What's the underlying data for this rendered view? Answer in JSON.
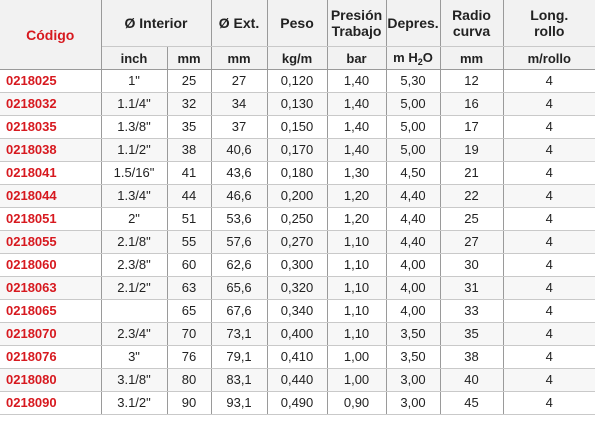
{
  "header": {
    "codigo": "Código",
    "interior": "Ø Interior",
    "ext": "Ø Ext.",
    "peso": "Peso",
    "presion_line1": "Presión",
    "presion_line2": "Trabajo",
    "depres": "Depres.",
    "radio_line1": "Radio",
    "radio_line2": "curva",
    "long_line1": "Long.",
    "long_line2": "rollo"
  },
  "units": {
    "inch": "inch",
    "mm_interior": "mm",
    "mm_ext": "mm",
    "kgm": "kg/m",
    "bar": "bar",
    "mh2o_pre": "m H",
    "mh2o_sub": "2",
    "mh2o_post": "O",
    "mm_radio": "mm",
    "mrollo": "m/rollo"
  },
  "rows": [
    {
      "code": "0218025",
      "inch": "1\"",
      "mm": "25",
      "ext": "27",
      "peso": "0,120",
      "bar": "1,40",
      "depres": "5,30",
      "radio": "12",
      "rollo": "4"
    },
    {
      "code": "0218032",
      "inch": "1.1/4\"",
      "mm": "32",
      "ext": "34",
      "peso": "0,130",
      "bar": "1,40",
      "depres": "5,00",
      "radio": "16",
      "rollo": "4"
    },
    {
      "code": "0218035",
      "inch": "1.3/8\"",
      "mm": "35",
      "ext": "37",
      "peso": "0,150",
      "bar": "1,40",
      "depres": "5,00",
      "radio": "17",
      "rollo": "4"
    },
    {
      "code": "0218038",
      "inch": "1.1/2\"",
      "mm": "38",
      "ext": "40,6",
      "peso": "0,170",
      "bar": "1,40",
      "depres": "5,00",
      "radio": "19",
      "rollo": "4"
    },
    {
      "code": "0218041",
      "inch": "1.5/16\"",
      "mm": "41",
      "ext": "43,6",
      "peso": "0,180",
      "bar": "1,30",
      "depres": "4,50",
      "radio": "21",
      "rollo": "4"
    },
    {
      "code": "0218044",
      "inch": "1.3/4\"",
      "mm": "44",
      "ext": "46,6",
      "peso": "0,200",
      "bar": "1,20",
      "depres": "4,40",
      "radio": "22",
      "rollo": "4"
    },
    {
      "code": "0218051",
      "inch": "2\"",
      "mm": "51",
      "ext": "53,6",
      "peso": "0,250",
      "bar": "1,20",
      "depres": "4,40",
      "radio": "25",
      "rollo": "4"
    },
    {
      "code": "0218055",
      "inch": "2.1/8\"",
      "mm": "55",
      "ext": "57,6",
      "peso": "0,270",
      "bar": "1,10",
      "depres": "4,40",
      "radio": "27",
      "rollo": "4"
    },
    {
      "code": "0218060",
      "inch": "2.3/8\"",
      "mm": "60",
      "ext": "62,6",
      "peso": "0,300",
      "bar": "1,10",
      "depres": "4,00",
      "radio": "30",
      "rollo": "4"
    },
    {
      "code": "0218063",
      "inch": "2.1/2\"",
      "mm": "63",
      "ext": "65,6",
      "peso": "0,320",
      "bar": "1,10",
      "depres": "4,00",
      "radio": "31",
      "rollo": "4"
    },
    {
      "code": "0218065",
      "inch": "",
      "mm": "65",
      "ext": "67,6",
      "peso": "0,340",
      "bar": "1,10",
      "depres": "4,00",
      "radio": "33",
      "rollo": "4"
    },
    {
      "code": "0218070",
      "inch": "2.3/4\"",
      "mm": "70",
      "ext": "73,1",
      "peso": "0,400",
      "bar": "1,10",
      "depres": "3,50",
      "radio": "35",
      "rollo": "4"
    },
    {
      "code": "0218076",
      "inch": "3\"",
      "mm": "76",
      "ext": "79,1",
      "peso": "0,410",
      "bar": "1,00",
      "depres": "3,50",
      "radio": "38",
      "rollo": "4"
    },
    {
      "code": "0218080",
      "inch": "3.1/8\"",
      "mm": "80",
      "ext": "83,1",
      "peso": "0,440",
      "bar": "1,00",
      "depres": "3,00",
      "radio": "40",
      "rollo": "4"
    },
    {
      "code": "0218090",
      "inch": "3.1/2\"",
      "mm": "90",
      "ext": "93,1",
      "peso": "0,490",
      "bar": "0,90",
      "depres": "3,00",
      "radio": "45",
      "rollo": "4"
    }
  ]
}
